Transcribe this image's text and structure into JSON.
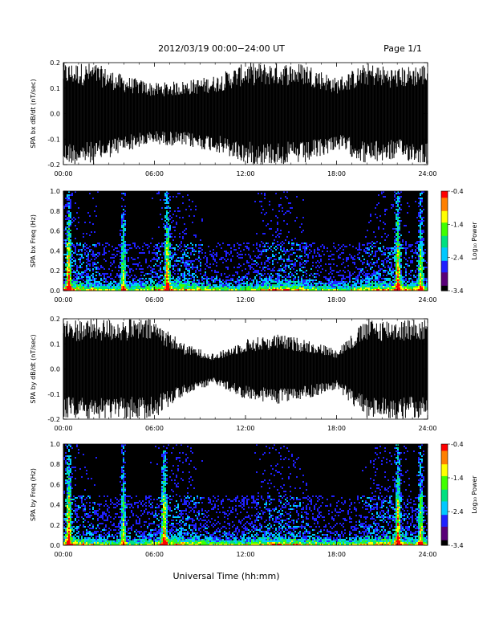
{
  "header": {
    "title": "2012/03/19   00:00−24:00 UT",
    "page": "Page 1/1"
  },
  "footer": {
    "xlabel": "Universal Time (hh:mm)"
  },
  "colorbar": {
    "label": "Log₁₀ Power",
    "ticks": [
      "-0.4",
      "-1.4",
      "-2.4",
      "-3.4"
    ],
    "range": [
      -3.4,
      -0.4
    ],
    "colormap": [
      "#000000",
      "#5a0078",
      "#2020ff",
      "#00c8ff",
      "#00e080",
      "#40ff00",
      "#ffff00",
      "#ff8000",
      "#ff0000"
    ]
  },
  "chart_data": [
    {
      "type": "line",
      "ylabel": "SPA bx dB/dt (nT/sec)",
      "xlim": [
        0,
        24
      ],
      "ylim": [
        -0.2,
        0.2
      ],
      "x_ticks": [
        "00:00",
        "06:00",
        "12:00",
        "18:00",
        "24:00"
      ],
      "y_ticks": [
        "-0.2",
        "-0.1",
        "0.0",
        "0.1",
        "0.2"
      ],
      "series": [
        {
          "color": "#000000",
          "envelope_hours": [
            0,
            2,
            4,
            6,
            8,
            10,
            12,
            14,
            16,
            18,
            20,
            22,
            24
          ],
          "envelope_amplitude": [
            0.2,
            0.2,
            0.15,
            0.12,
            0.13,
            0.15,
            0.2,
            0.2,
            0.2,
            0.14,
            0.2,
            0.18,
            0.2
          ]
        }
      ]
    },
    {
      "type": "heatmap",
      "ylabel": "SPA bx Freq (Hz)",
      "xlim": [
        0,
        24
      ],
      "ylim": [
        0,
        1.0
      ],
      "x_ticks": [
        "00:00",
        "06:00",
        "12:00",
        "18:00",
        "24:00"
      ],
      "y_ticks": [
        "0.0",
        "0.2",
        "0.4",
        "0.6",
        "0.8",
        "1.0"
      ],
      "bright_bands_hours": [
        0.3,
        3.9,
        6.8,
        22.0,
        23.5
      ]
    },
    {
      "type": "line",
      "ylabel": "SPA by dB/dt (nT/sec)",
      "xlim": [
        0,
        24
      ],
      "ylim": [
        -0.2,
        0.2
      ],
      "x_ticks": [
        "00:00",
        "06:00",
        "12:00",
        "18:00",
        "24:00"
      ],
      "y_ticks": [
        "-0.2",
        "-0.1",
        "0.0",
        "0.1",
        "0.2"
      ],
      "series": [
        {
          "color": "#000000",
          "envelope_hours": [
            0,
            2,
            4,
            6,
            8,
            10,
            12,
            14,
            16,
            18,
            20,
            22,
            24
          ],
          "envelope_amplitude": [
            0.2,
            0.2,
            0.2,
            0.2,
            0.1,
            0.06,
            0.12,
            0.14,
            0.12,
            0.08,
            0.2,
            0.2,
            0.2
          ]
        }
      ]
    },
    {
      "type": "heatmap",
      "ylabel": "SPA by Freq (Hz)",
      "xlim": [
        0,
        24
      ],
      "ylim": [
        0,
        1.0
      ],
      "x_ticks": [
        "00:00",
        "06:00",
        "12:00",
        "18:00",
        "24:00"
      ],
      "y_ticks": [
        "0.0",
        "0.2",
        "0.4",
        "0.6",
        "0.8",
        "1.0"
      ],
      "bright_bands_hours": [
        0.3,
        3.9,
        6.6,
        22.0,
        23.5
      ]
    }
  ]
}
